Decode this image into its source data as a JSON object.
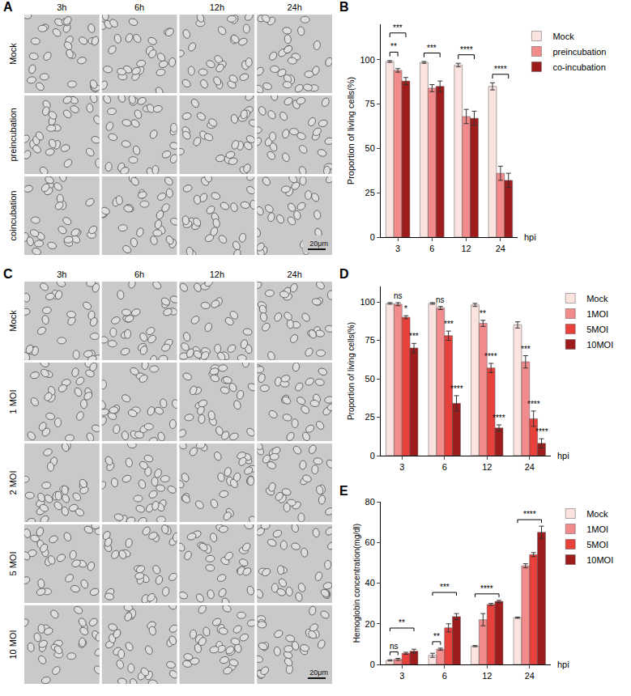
{
  "image_panels": [
    {
      "panel": "A",
      "columns": [
        "3h",
        "6h",
        "12h",
        "24h"
      ],
      "rows": [
        "Mock",
        "preincubation",
        "coincubation"
      ],
      "scale_bar": "20μm"
    },
    {
      "panel": "C",
      "columns": [
        "3h",
        "6h",
        "12h",
        "24h"
      ],
      "rows": [
        "Mock",
        "1 MOI",
        "2 MOI",
        "5 MOI",
        "10 MOI"
      ],
      "scale_bar": "20μm"
    }
  ],
  "chart_data": [
    {
      "panel": "B",
      "type": "bar",
      "categories": [
        "3",
        "6",
        "12",
        "24"
      ],
      "x_label": "hpi",
      "y_label": "Proportion of living cells(%)",
      "ylim": [
        0,
        120
      ],
      "yticks": [
        0,
        25,
        50,
        75,
        100
      ],
      "legend": "right",
      "series": [
        {
          "name": "Mock",
          "color": "#fbe3df",
          "values": [
            99,
            98.5,
            97,
            85
          ],
          "errors": [
            0.5,
            0.5,
            1,
            2
          ]
        },
        {
          "name": "preincubation",
          "color": "#f28b8b",
          "values": [
            94,
            84,
            68,
            36
          ],
          "errors": [
            1,
            2,
            4,
            4
          ]
        },
        {
          "name": "co-incubation",
          "color": "#9e1c1c",
          "values": [
            88,
            85,
            67,
            32
          ],
          "errors": [
            2,
            3,
            4,
            4
          ]
        }
      ],
      "annotations": [
        {
          "category": "3",
          "from": "Mock",
          "to": "preincubation",
          "label": "**"
        },
        {
          "category": "3",
          "from": "Mock",
          "to": "co-incubation",
          "label": "***"
        },
        {
          "category": "6",
          "from": "Mock",
          "to": "co-incubation",
          "label": "***"
        },
        {
          "category": "12",
          "from": "Mock",
          "to": "co-incubation",
          "label": "****"
        },
        {
          "category": "24",
          "from": "Mock",
          "to": "co-incubation",
          "label": "****"
        }
      ]
    },
    {
      "panel": "D",
      "type": "bar",
      "categories": [
        "3",
        "6",
        "12",
        "24"
      ],
      "x_label": "hpi",
      "y_label": "Proportion of living cells(%)",
      "ylim": [
        0,
        110
      ],
      "yticks": [
        0,
        25,
        50,
        75,
        100
      ],
      "legend": "right",
      "series": [
        {
          "name": "Mock",
          "color": "#fbe3df",
          "values": [
            99,
            99,
            98,
            85
          ],
          "errors": [
            0.5,
            0.5,
            1,
            2
          ]
        },
        {
          "name": "1MOI",
          "color": "#f28b8b",
          "values": [
            98.5,
            96,
            86,
            61
          ],
          "errors": [
            1,
            1,
            2,
            4
          ],
          "significance": [
            "ns",
            "ns",
            "**",
            "***"
          ]
        },
        {
          "name": "5MOI",
          "color": "#e8413c",
          "values": [
            90,
            78,
            57,
            24
          ],
          "errors": [
            1,
            3,
            3,
            5
          ],
          "significance": [
            "*",
            "***",
            "****",
            "****"
          ]
        },
        {
          "name": "10MOI",
          "color": "#9e1c1c",
          "values": [
            70,
            34,
            18,
            8
          ],
          "errors": [
            3,
            5,
            2,
            3
          ],
          "significance": [
            "***",
            "****",
            "****",
            "****"
          ]
        }
      ]
    },
    {
      "panel": "E",
      "type": "bar",
      "categories": [
        "3",
        "6",
        "12",
        "24"
      ],
      "x_label": "hpi",
      "y_label": "Hemoglobin concentration(mg/dl)",
      "ylim": [
        0,
        80
      ],
      "yticks": [
        0,
        20,
        40,
        60,
        80
      ],
      "legend": "right",
      "series": [
        {
          "name": "Mock",
          "color": "#fbe3df",
          "values": [
            2,
            4.5,
            9,
            23
          ],
          "errors": [
            0.3,
            1,
            0.3,
            0.3
          ]
        },
        {
          "name": "1MOI",
          "color": "#f28b8b",
          "values": [
            2.5,
            7.5,
            22,
            48.5
          ],
          "errors": [
            0.5,
            0.5,
            3,
            1
          ]
        },
        {
          "name": "5MOI",
          "color": "#e8413c",
          "values": [
            5.5,
            18,
            29.5,
            54
          ],
          "errors": [
            0.5,
            2,
            0.5,
            1
          ]
        },
        {
          "name": "10MOI",
          "color": "#9e1c1c",
          "values": [
            6.5,
            23.5,
            31,
            65
          ],
          "errors": [
            1,
            1.5,
            0.5,
            3
          ]
        }
      ],
      "annotations": [
        {
          "category": "3",
          "from": "Mock",
          "to": "1MOI",
          "label": "ns"
        },
        {
          "category": "3",
          "from": "Mock",
          "to": "10MOI",
          "label": "**"
        },
        {
          "category": "6",
          "from": "Mock",
          "to": "1MOI",
          "label": "**"
        },
        {
          "category": "6",
          "from": "Mock",
          "to": "10MOI",
          "label": "***"
        },
        {
          "category": "12",
          "from": "Mock",
          "to": "10MOI",
          "label": "****"
        },
        {
          "category": "24",
          "from": "Mock",
          "to": "10MOI",
          "label": "****"
        }
      ]
    }
  ]
}
